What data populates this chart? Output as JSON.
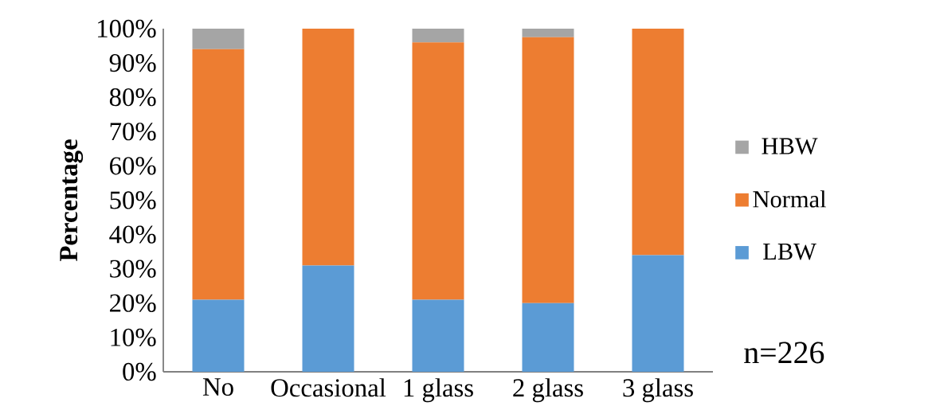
{
  "chart_data": {
    "type": "bar",
    "stacked": true,
    "ylabel": "Percentage",
    "categories": [
      "No",
      "Occasional",
      "1 glass",
      "2 glass",
      "3 glass"
    ],
    "series": [
      {
        "name": "LBW",
        "color": "#5b9bd5",
        "values": [
          21,
          31,
          21,
          20,
          34
        ]
      },
      {
        "name": "Normal",
        "color": "#ed7d31",
        "values": [
          73,
          69,
          75,
          77.5,
          66
        ]
      },
      {
        "name": "HBW",
        "color": "#a5a5a5",
        "values": [
          6,
          0,
          4,
          2.5,
          0
        ]
      }
    ],
    "ylim": [
      0,
      100
    ],
    "yticks": [
      {
        "value": 0,
        "label": "0%"
      },
      {
        "value": 10,
        "label": "10%"
      },
      {
        "value": 20,
        "label": "20%"
      },
      {
        "value": 30,
        "label": "30%"
      },
      {
        "value": 40,
        "label": "40%"
      },
      {
        "value": 50,
        "label": "50%"
      },
      {
        "value": 60,
        "label": "60%"
      },
      {
        "value": 70,
        "label": "70%"
      },
      {
        "value": 80,
        "label": "80%"
      },
      {
        "value": 90,
        "label": "90%"
      },
      {
        "value": 100,
        "label": "100%"
      }
    ],
    "grid": false,
    "legend": "right",
    "annotations": [
      "n=226"
    ]
  }
}
